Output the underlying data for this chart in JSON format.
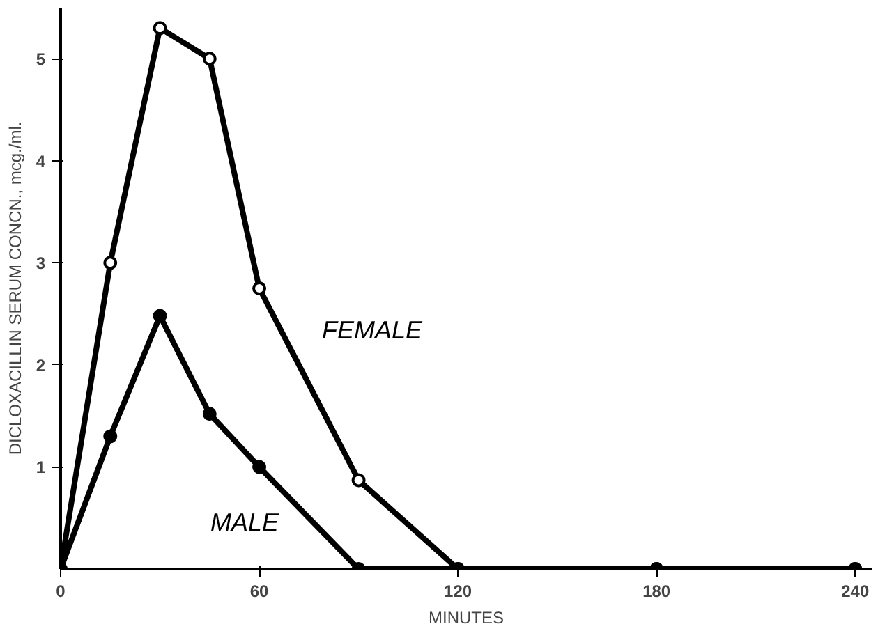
{
  "chart_data": {
    "type": "line",
    "xlabel": "MINUTES",
    "ylabel": "DICLOXACILLIN SERUM CONCN., mcg./ml.",
    "x": [
      0,
      15,
      30,
      45,
      60,
      90,
      120,
      180,
      240
    ],
    "series": [
      {
        "name": "FEMALE",
        "color": "#000000",
        "marker": "circle_open",
        "values": [
          0,
          3.0,
          5.3,
          5.0,
          2.75,
          0.87,
          0,
          0,
          0
        ]
      },
      {
        "name": "MALE",
        "color": "#000000",
        "marker": "circle",
        "values": [
          0,
          1.3,
          2.48,
          1.52,
          1.0,
          0,
          0,
          0,
          0
        ]
      }
    ],
    "xlim": [
      0,
      245
    ],
    "ylim": [
      0,
      5.5
    ],
    "xticks": [
      0,
      60,
      120,
      180,
      240
    ],
    "yticks": [
      1,
      2,
      3,
      4,
      5
    ],
    "grid": false,
    "legend": false,
    "line_style": "solid"
  }
}
